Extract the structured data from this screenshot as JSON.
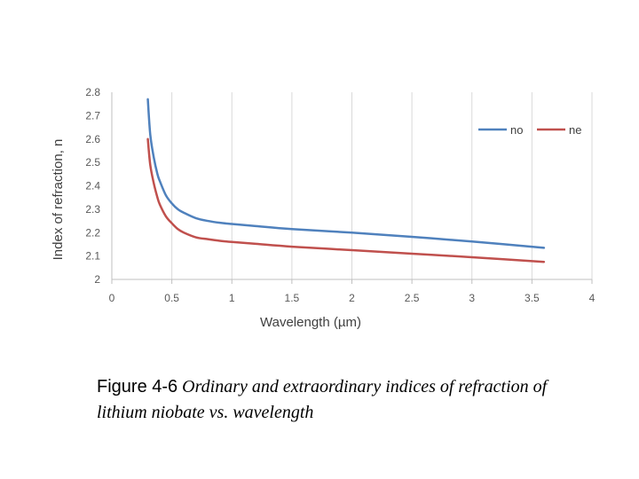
{
  "chart_data": {
    "type": "line",
    "title": "",
    "xlabel": "Wavelength (µm)",
    "ylabel": "Index of refraction, n",
    "xlim": [
      0,
      4
    ],
    "ylim": [
      2,
      2.8
    ],
    "xticks": [
      "0",
      "0.5",
      "1",
      "1.5",
      "2",
      "2.5",
      "3",
      "3.5",
      "4"
    ],
    "yticks": [
      "2",
      "2.1",
      "2.2",
      "2.3",
      "2.4",
      "2.5",
      "2.6",
      "2.7",
      "2.8"
    ],
    "grid": "vertical",
    "legend": "top-right",
    "series": [
      {
        "name": "no",
        "color": "#4f81bd",
        "x": [
          0.3,
          0.32,
          0.35,
          0.38,
          0.4,
          0.45,
          0.5,
          0.55,
          0.6,
          0.7,
          0.8,
          0.9,
          1.0,
          1.2,
          1.5,
          2.0,
          2.5,
          3.0,
          3.6
        ],
        "y": [
          2.77,
          2.62,
          2.52,
          2.45,
          2.42,
          2.36,
          2.325,
          2.3,
          2.285,
          2.262,
          2.25,
          2.242,
          2.237,
          2.228,
          2.215,
          2.2,
          2.182,
          2.162,
          2.135
        ]
      },
      {
        "name": "ne",
        "color": "#c0504d",
        "x": [
          0.3,
          0.32,
          0.35,
          0.38,
          0.4,
          0.45,
          0.5,
          0.55,
          0.6,
          0.7,
          0.8,
          0.9,
          1.0,
          1.2,
          1.5,
          2.0,
          2.5,
          3.0,
          3.6
        ],
        "y": [
          2.6,
          2.49,
          2.41,
          2.35,
          2.32,
          2.27,
          2.24,
          2.215,
          2.2,
          2.18,
          2.172,
          2.165,
          2.16,
          2.152,
          2.14,
          2.125,
          2.11,
          2.095,
          2.075
        ]
      }
    ]
  },
  "caption": {
    "label": "Figure 4-6",
    "text": " Ordinary and extraordinary indices of refraction of lithium niobate vs. wavelength"
  }
}
